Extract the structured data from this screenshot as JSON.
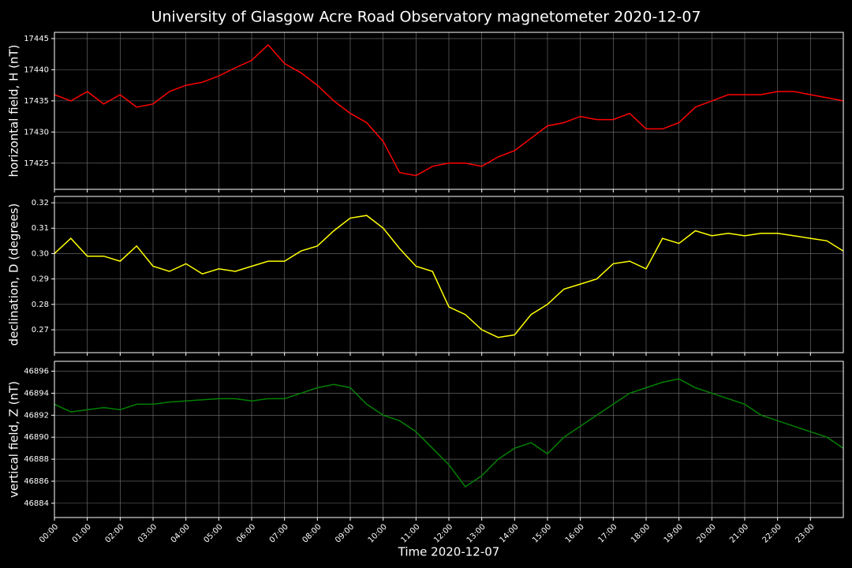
{
  "title": "University of Glasgow Acre Road Observatory magnetometer 2020-12-07",
  "chart_data": [
    {
      "type": "line",
      "ylabel": "horizontal field, H (nT)",
      "color": "#ff0000",
      "grid": true,
      "x": [
        0,
        0.5,
        1,
        1.5,
        2,
        2.5,
        3,
        3.5,
        4,
        4.5,
        5,
        5.5,
        6,
        6.5,
        7,
        7.5,
        8,
        8.5,
        9,
        9.5,
        10,
        10.5,
        11,
        11.5,
        12,
        12.5,
        13,
        13.5,
        14,
        14.5,
        15,
        15.5,
        16,
        16.5,
        17,
        17.5,
        18,
        18.5,
        19,
        19.5,
        20,
        20.5,
        21,
        21.5,
        22,
        22.5,
        23,
        23.5,
        24
      ],
      "values": [
        17436,
        17435,
        17436.5,
        17434.5,
        17436,
        17434,
        17434.5,
        17436.5,
        17437.5,
        17438,
        17439,
        17440.3,
        17441.5,
        17444,
        17441,
        17439.5,
        17437.5,
        17435,
        17433,
        17431.5,
        17428.5,
        17423.5,
        17423,
        17424.5,
        17425,
        17425,
        17424.5,
        17426,
        17427,
        17429,
        17431,
        17431.5,
        17432.5,
        17432,
        17432,
        17433,
        17430.5,
        17430.5,
        17431.5,
        17434,
        17435,
        17436,
        17436,
        17436,
        17436.5,
        17436.5,
        17436,
        17435.5,
        17435
      ],
      "xlim": [
        0,
        24
      ],
      "ylim": [
        17420.8,
        17446.0
      ],
      "yticks": [
        17425,
        17430,
        17435,
        17440,
        17445
      ]
    },
    {
      "type": "line",
      "ylabel": "declination, D (degrees)",
      "color": "#ffff00",
      "grid": true,
      "x": [
        0,
        0.5,
        1,
        1.5,
        2,
        2.5,
        3,
        3.5,
        4,
        4.5,
        5,
        5.5,
        6,
        6.5,
        7,
        7.5,
        8,
        8.5,
        9,
        9.5,
        10,
        10.5,
        11,
        11.5,
        12,
        12.5,
        13,
        13.5,
        14,
        14.5,
        15,
        15.5,
        16,
        16.5,
        17,
        17.5,
        18,
        18.5,
        19,
        19.5,
        20,
        20.5,
        21,
        21.5,
        22,
        22.5,
        23,
        23.5,
        24
      ],
      "values": [
        0.3,
        0.306,
        0.299,
        0.299,
        0.297,
        0.303,
        0.295,
        0.293,
        0.296,
        0.292,
        0.294,
        0.293,
        0.295,
        0.297,
        0.297,
        0.301,
        0.303,
        0.309,
        0.314,
        0.315,
        0.31,
        0.302,
        0.295,
        0.293,
        0.279,
        0.276,
        0.27,
        0.267,
        0.268,
        0.276,
        0.28,
        0.286,
        0.288,
        0.29,
        0.296,
        0.297,
        0.294,
        0.306,
        0.304,
        0.309,
        0.307,
        0.308,
        0.307,
        0.308,
        0.308,
        0.307,
        0.306,
        0.305,
        0.301
      ],
      "xlim": [
        0,
        24
      ],
      "ylim": [
        0.261,
        0.3225
      ],
      "yticks": [
        0.27,
        0.28,
        0.29,
        {
          "value": 0.3,
          "label": "0.30"
        },
        0.31,
        0.32
      ]
    },
    {
      "type": "line",
      "ylabel": "vertical field, Z (nT)",
      "xlabel": "Time 2020-12-07",
      "color": "#008000",
      "grid": true,
      "x": [
        0,
        0.5,
        1,
        1.5,
        2,
        2.5,
        3,
        3.5,
        4,
        4.5,
        5,
        5.5,
        6,
        6.5,
        7,
        7.5,
        8,
        8.5,
        9,
        9.5,
        10,
        10.5,
        11,
        11.5,
        12,
        12.5,
        13,
        13.5,
        14,
        14.5,
        15,
        15.5,
        16,
        16.5,
        17,
        17.5,
        18,
        18.5,
        19,
        19.5,
        20,
        20.5,
        21,
        21.5,
        22,
        22.5,
        23,
        23.5,
        24
      ],
      "values": [
        46893,
        46892.3,
        46892.5,
        46892.7,
        46892.5,
        46893,
        46893,
        46893.2,
        46893.3,
        46893.4,
        46893.5,
        46893.5,
        46893.3,
        46893.5,
        46893.5,
        46894,
        46894.5,
        46894.8,
        46894.5,
        46893,
        46892,
        46891.5,
        46890.5,
        46889,
        46887.5,
        46885.5,
        46886.5,
        46888,
        46889,
        46889.5,
        46888.5,
        46890,
        46891,
        46892,
        46893,
        46894,
        46894.5,
        46895,
        46895.3,
        46894.5,
        46894,
        46893.5,
        46893,
        46892,
        46891.5,
        46891,
        46890.5,
        46890,
        46889
      ],
      "xlim": [
        0,
        24
      ],
      "ylim": [
        46882.7,
        46896.9
      ],
      "yticks": [
        46884,
        46886,
        46888,
        46890,
        46892,
        46894,
        46896
      ],
      "xticks": [
        {
          "value": 0,
          "label": "00:00"
        },
        {
          "value": 1,
          "label": "01:00"
        },
        {
          "value": 2,
          "label": "02:00"
        },
        {
          "value": 3,
          "label": "03:00"
        },
        {
          "value": 4,
          "label": "04:00"
        },
        {
          "value": 5,
          "label": "05:00"
        },
        {
          "value": 6,
          "label": "06:00"
        },
        {
          "value": 7,
          "label": "07:00"
        },
        {
          "value": 8,
          "label": "08:00"
        },
        {
          "value": 9,
          "label": "09:00"
        },
        {
          "value": 10,
          "label": "10:00"
        },
        {
          "value": 11,
          "label": "11:00"
        },
        {
          "value": 12,
          "label": "12:00"
        },
        {
          "value": 13,
          "label": "13:00"
        },
        {
          "value": 14,
          "label": "14:00"
        },
        {
          "value": 15,
          "label": "15:00"
        },
        {
          "value": 16,
          "label": "16:00"
        },
        {
          "value": 17,
          "label": "17:00"
        },
        {
          "value": 18,
          "label": "18:00"
        },
        {
          "value": 19,
          "label": "19:00"
        },
        {
          "value": 20,
          "label": "20:00"
        },
        {
          "value": 21,
          "label": "21:00"
        },
        {
          "value": 22,
          "label": "22:00"
        },
        {
          "value": 23,
          "label": "23:00"
        }
      ]
    }
  ]
}
